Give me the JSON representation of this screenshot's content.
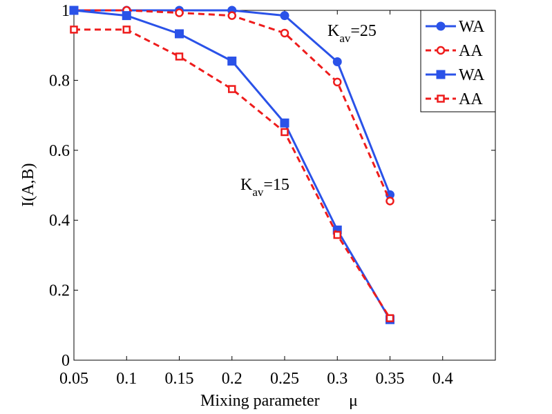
{
  "chart_data": {
    "type": "line",
    "xlabel": "Mixing parameter",
    "xlabel_symbol": "μ",
    "ylabel": "I(A,B)",
    "xlim": [
      0.05,
      0.45
    ],
    "ylim": [
      0,
      1
    ],
    "xticks": [
      "0.05",
      "0.1",
      "0.15",
      "0.2",
      "0.25",
      "0.3",
      "0.35",
      "0.4"
    ],
    "yticks": [
      "0",
      "0.2",
      "0.4",
      "0.6",
      "0.8",
      "1"
    ],
    "x": [
      0.05,
      0.1,
      0.15,
      0.2,
      0.25,
      0.3,
      0.35
    ],
    "series": [
      {
        "name": "WA",
        "group": "Kav=25",
        "color": "#2a52e8",
        "style": "solid",
        "marker": "filled-circle",
        "values": [
          1.0,
          1.0,
          1.0,
          1.0,
          0.985,
          0.853,
          0.473
        ]
      },
      {
        "name": "AA",
        "group": "Kav=25",
        "color": "#ee1c1c",
        "style": "dashed",
        "marker": "open-circle",
        "values": [
          1.0,
          1.0,
          0.993,
          0.985,
          0.935,
          0.795,
          0.455
        ]
      },
      {
        "name": "WA",
        "group": "Kav=15",
        "color": "#2a52e8",
        "style": "solid",
        "marker": "filled-square",
        "values": [
          1.0,
          0.985,
          0.933,
          0.855,
          0.678,
          0.372,
          0.116
        ]
      },
      {
        "name": "AA",
        "group": "Kav=15",
        "color": "#ee1c1c",
        "style": "dashed",
        "marker": "open-square",
        "values": [
          0.945,
          0.945,
          0.868,
          0.775,
          0.652,
          0.358,
          0.12
        ]
      }
    ],
    "annotations": [
      {
        "main": "K",
        "sub": "av",
        "rest": "=25"
      },
      {
        "main": "K",
        "sub": "av",
        "rest": "=15"
      }
    ],
    "legend_position": "top-right",
    "grid": false
  }
}
